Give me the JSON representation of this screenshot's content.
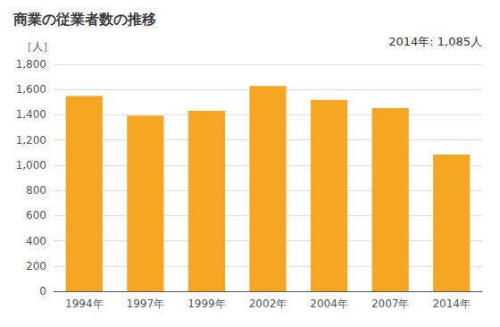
{
  "chart_data": {
    "type": "bar",
    "title": "商業の従業者数の推移",
    "ylabel": "［人］",
    "annotation": "2014年: 1,085人",
    "categories": [
      "1994年",
      "1997年",
      "1999年",
      "2002年",
      "2004年",
      "2007年",
      "2014年"
    ],
    "values": [
      1549,
      1392,
      1432,
      1629,
      1519,
      1452,
      1085
    ],
    "color": "#F5A623",
    "ylim": [
      0,
      1800
    ],
    "yticks": [
      0,
      200,
      400,
      600,
      800,
      {
        "value": 1000,
        "label": "1,000"
      },
      {
        "value": 1200,
        "label": "1,200"
      },
      {
        "value": 1400,
        "label": "1,400"
      },
      {
        "value": 1600,
        "label": "1,600"
      },
      {
        "value": 1800,
        "label": "1,800"
      }
    ],
    "grid": true
  }
}
